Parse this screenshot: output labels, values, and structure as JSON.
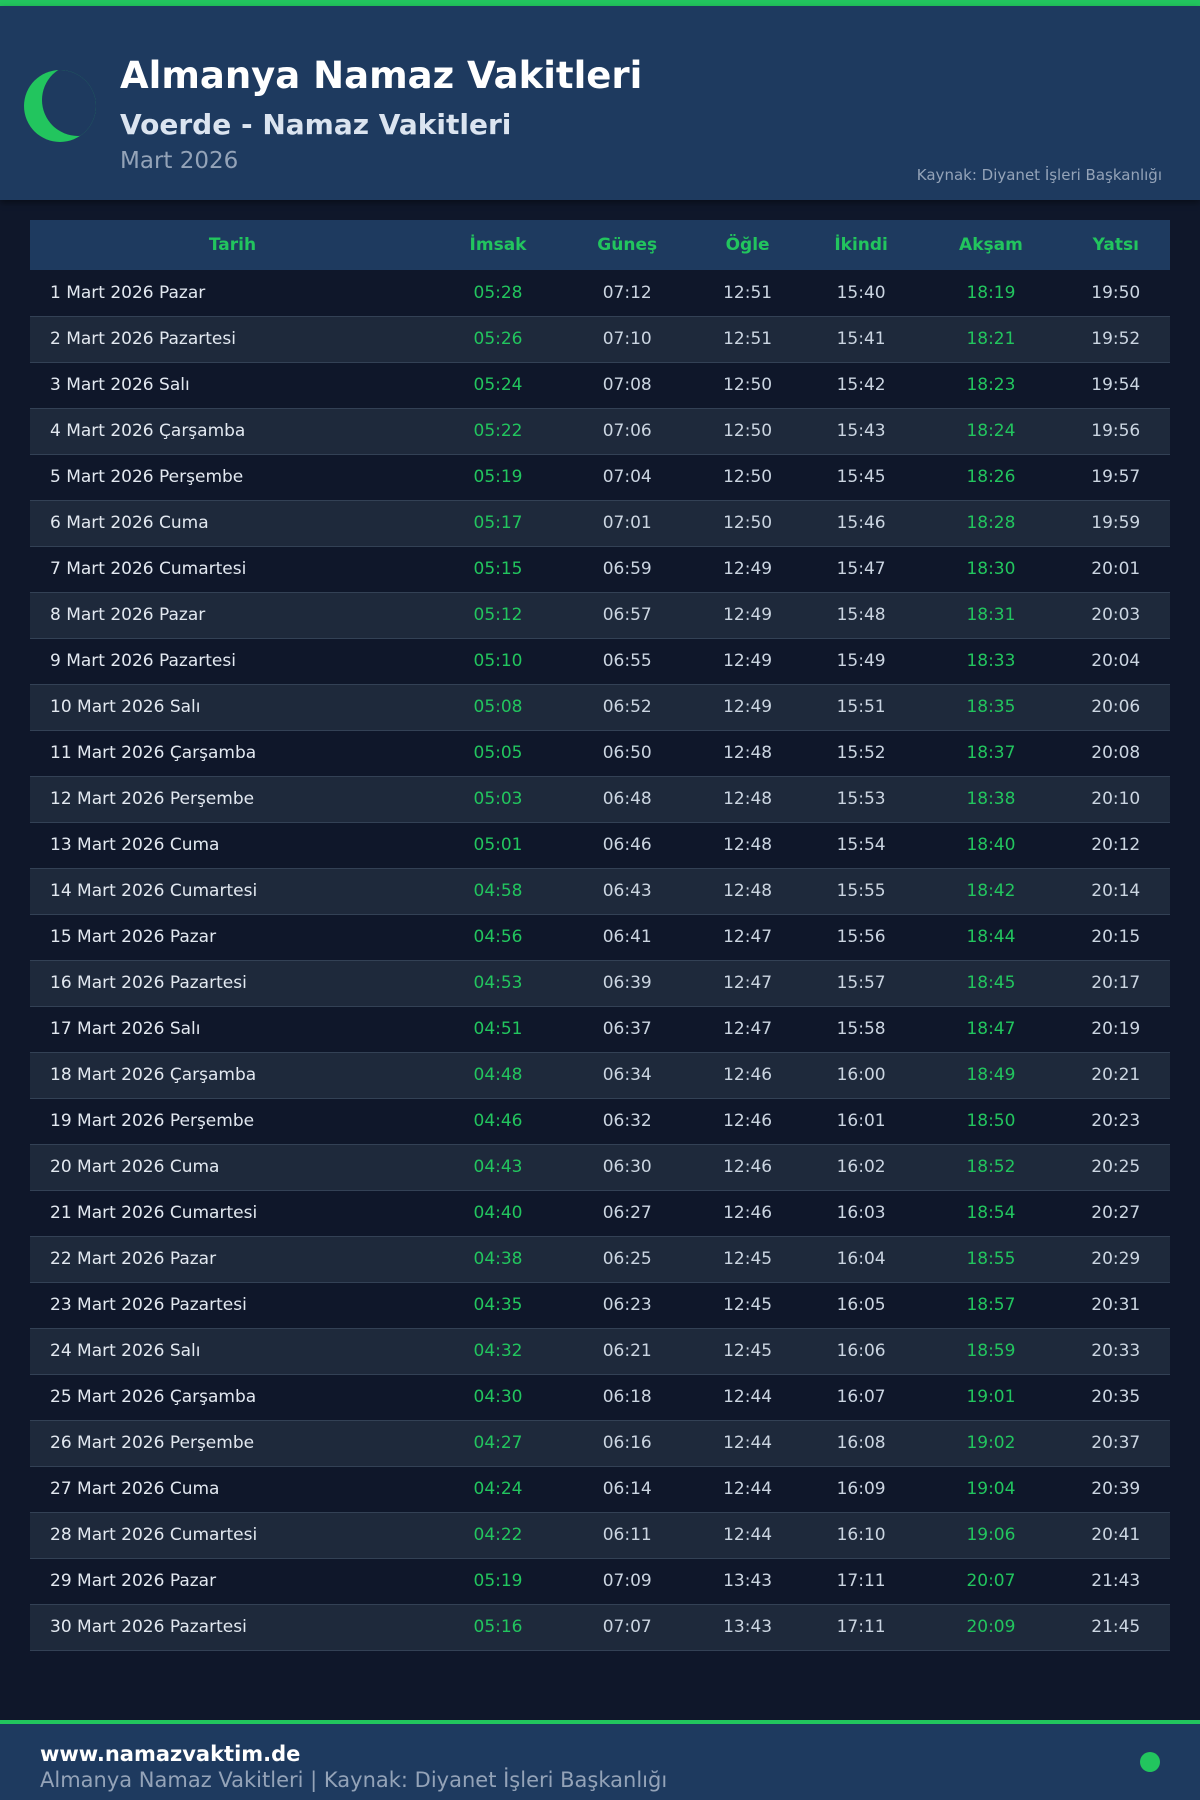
{
  "header": {
    "title": "Almanya Namaz Vakitleri",
    "subtitle": "Voerde - Namaz Vakitleri",
    "month": "Mart 2026",
    "source": "Kaynak: Diyanet İşleri Başkanlığı",
    "icon": "crescent-moon-icon"
  },
  "colors": {
    "accent": "#22c55e",
    "header_bg": "#1e3a5f",
    "page_bg": "#0f172a"
  },
  "table": {
    "columns": [
      "Tarih",
      "İmsak",
      "Güneş",
      "Öğle",
      "İkindi",
      "Akşam",
      "Yatsı"
    ],
    "rows": [
      [
        "1 Mart 2026 Pazar",
        "05:28",
        "07:12",
        "12:51",
        "15:40",
        "18:19",
        "19:50"
      ],
      [
        "2 Mart 2026 Pazartesi",
        "05:26",
        "07:10",
        "12:51",
        "15:41",
        "18:21",
        "19:52"
      ],
      [
        "3 Mart 2026 Salı",
        "05:24",
        "07:08",
        "12:50",
        "15:42",
        "18:23",
        "19:54"
      ],
      [
        "4 Mart 2026 Çarşamba",
        "05:22",
        "07:06",
        "12:50",
        "15:43",
        "18:24",
        "19:56"
      ],
      [
        "5 Mart 2026 Perşembe",
        "05:19",
        "07:04",
        "12:50",
        "15:45",
        "18:26",
        "19:57"
      ],
      [
        "6 Mart 2026 Cuma",
        "05:17",
        "07:01",
        "12:50",
        "15:46",
        "18:28",
        "19:59"
      ],
      [
        "7 Mart 2026 Cumartesi",
        "05:15",
        "06:59",
        "12:49",
        "15:47",
        "18:30",
        "20:01"
      ],
      [
        "8 Mart 2026 Pazar",
        "05:12",
        "06:57",
        "12:49",
        "15:48",
        "18:31",
        "20:03"
      ],
      [
        "9 Mart 2026 Pazartesi",
        "05:10",
        "06:55",
        "12:49",
        "15:49",
        "18:33",
        "20:04"
      ],
      [
        "10 Mart 2026 Salı",
        "05:08",
        "06:52",
        "12:49",
        "15:51",
        "18:35",
        "20:06"
      ],
      [
        "11 Mart 2026 Çarşamba",
        "05:05",
        "06:50",
        "12:48",
        "15:52",
        "18:37",
        "20:08"
      ],
      [
        "12 Mart 2026 Perşembe",
        "05:03",
        "06:48",
        "12:48",
        "15:53",
        "18:38",
        "20:10"
      ],
      [
        "13 Mart 2026 Cuma",
        "05:01",
        "06:46",
        "12:48",
        "15:54",
        "18:40",
        "20:12"
      ],
      [
        "14 Mart 2026 Cumartesi",
        "04:58",
        "06:43",
        "12:48",
        "15:55",
        "18:42",
        "20:14"
      ],
      [
        "15 Mart 2026 Pazar",
        "04:56",
        "06:41",
        "12:47",
        "15:56",
        "18:44",
        "20:15"
      ],
      [
        "16 Mart 2026 Pazartesi",
        "04:53",
        "06:39",
        "12:47",
        "15:57",
        "18:45",
        "20:17"
      ],
      [
        "17 Mart 2026 Salı",
        "04:51",
        "06:37",
        "12:47",
        "15:58",
        "18:47",
        "20:19"
      ],
      [
        "18 Mart 2026 Çarşamba",
        "04:48",
        "06:34",
        "12:46",
        "16:00",
        "18:49",
        "20:21"
      ],
      [
        "19 Mart 2026 Perşembe",
        "04:46",
        "06:32",
        "12:46",
        "16:01",
        "18:50",
        "20:23"
      ],
      [
        "20 Mart 2026 Cuma",
        "04:43",
        "06:30",
        "12:46",
        "16:02",
        "18:52",
        "20:25"
      ],
      [
        "21 Mart 2026 Cumartesi",
        "04:40",
        "06:27",
        "12:46",
        "16:03",
        "18:54",
        "20:27"
      ],
      [
        "22 Mart 2026 Pazar",
        "04:38",
        "06:25",
        "12:45",
        "16:04",
        "18:55",
        "20:29"
      ],
      [
        "23 Mart 2026 Pazartesi",
        "04:35",
        "06:23",
        "12:45",
        "16:05",
        "18:57",
        "20:31"
      ],
      [
        "24 Mart 2026 Salı",
        "04:32",
        "06:21",
        "12:45",
        "16:06",
        "18:59",
        "20:33"
      ],
      [
        "25 Mart 2026 Çarşamba",
        "04:30",
        "06:18",
        "12:44",
        "16:07",
        "19:01",
        "20:35"
      ],
      [
        "26 Mart 2026 Perşembe",
        "04:27",
        "06:16",
        "12:44",
        "16:08",
        "19:02",
        "20:37"
      ],
      [
        "27 Mart 2026 Cuma",
        "04:24",
        "06:14",
        "12:44",
        "16:09",
        "19:04",
        "20:39"
      ],
      [
        "28 Mart 2026 Cumartesi",
        "04:22",
        "06:11",
        "12:44",
        "16:10",
        "19:06",
        "20:41"
      ],
      [
        "29 Mart 2026 Pazar",
        "05:19",
        "07:09",
        "13:43",
        "17:11",
        "20:07",
        "21:43"
      ],
      [
        "30 Mart 2026 Pazartesi",
        "05:16",
        "07:07",
        "13:43",
        "17:11",
        "20:09",
        "21:45"
      ]
    ]
  },
  "footer": {
    "site": "www.namazvaktim.de",
    "text": "Almanya Namaz Vakitleri | Kaynak: Diyanet İşleri Başkanlığı"
  }
}
